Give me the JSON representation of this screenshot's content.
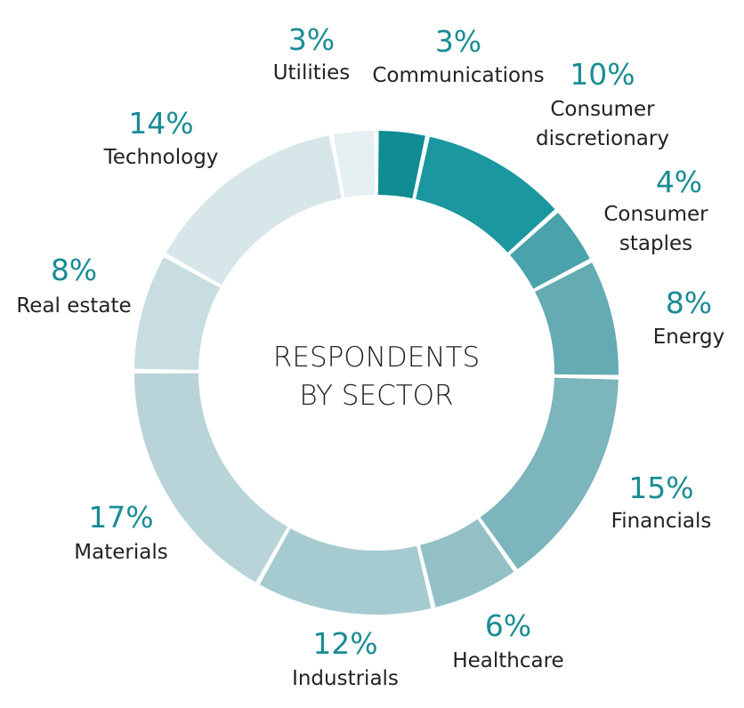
{
  "chart_data": {
    "type": "pie",
    "title": "RESPONDENTS BY SECTOR",
    "title_lines": [
      "RESPONDENTS",
      "BY SECTOR"
    ],
    "unit": "%",
    "slices": [
      {
        "label": "Communications",
        "label_lines": [
          "Communications"
        ],
        "pct_text": "3%",
        "value": 3.4,
        "color": "#0f8c94"
      },
      {
        "label": "Consumer discretionary",
        "label_lines": [
          "Consumer",
          "discretionary"
        ],
        "pct_text": "10%",
        "value": 10.0,
        "color": "#1b979f"
      },
      {
        "label": "Consumer staples",
        "label_lines": [
          "Consumer",
          "staples"
        ],
        "pct_text": "4%",
        "value": 4.0,
        "color": "#4aa2aa"
      },
      {
        "label": "Energy",
        "label_lines": [
          "Energy"
        ],
        "pct_text": "8%",
        "value": 8.0,
        "color": "#65abb3"
      },
      {
        "label": "Financials",
        "label_lines": [
          "Financials"
        ],
        "pct_text": "15%",
        "value": 15.0,
        "color": "#7cb5bc"
      },
      {
        "label": "Healthcare",
        "label_lines": [
          "Healthcare"
        ],
        "pct_text": "6%",
        "value": 6.0,
        "color": "#92c0c6"
      },
      {
        "label": "Industrials",
        "label_lines": [
          "Industrials"
        ],
        "pct_text": "12%",
        "value": 12.0,
        "color": "#a5cbd1"
      },
      {
        "label": "Materials",
        "label_lines": [
          "Materials"
        ],
        "pct_text": "17%",
        "value": 17.0,
        "color": "#b8d4d9"
      },
      {
        "label": "Real estate",
        "label_lines": [
          "Real estate"
        ],
        "pct_text": "8%",
        "value": 8.0,
        "color": "#c8dde1"
      },
      {
        "label": "Technology",
        "label_lines": [
          "Technology"
        ],
        "pct_text": "14%",
        "value": 14.0,
        "color": "#d7e6e9"
      },
      {
        "label": "Utilities",
        "label_lines": [
          "Utilities"
        ],
        "pct_text": "3%",
        "value": 3.0,
        "color": "#e6eff1"
      }
    ],
    "legend": "none"
  }
}
